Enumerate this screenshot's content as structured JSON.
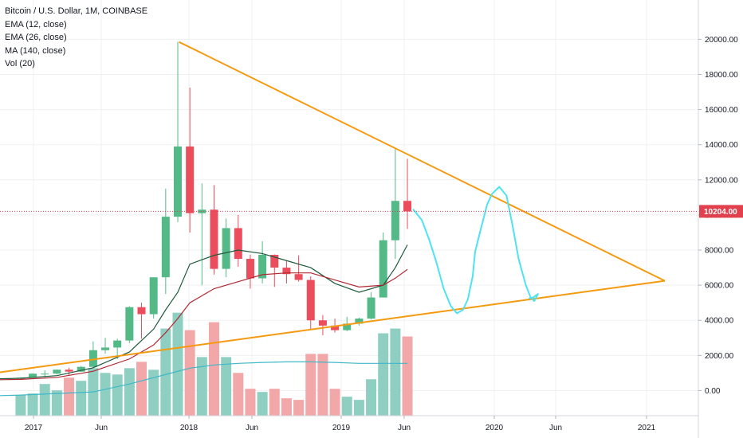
{
  "legend": {
    "title": "Bitcoin / U.S. Dollar, 1M, COINBASE",
    "indicators": [
      "EMA (12, close)",
      "EMA (26, close)",
      "MA (140, close)",
      "Vol (20)"
    ]
  },
  "colors": {
    "up": "#53b987",
    "down": "#eb4d5c",
    "vol_up": "#8fcfc2",
    "vol_down": "#f2a7a9",
    "ema12": "#1e5a3c",
    "ema26": "#b22833",
    "vol_ma": "#3fb8c8",
    "trendline": "#f59a0f",
    "drawing": "#4ee3f0",
    "last_price": "#e3404e",
    "grid": "#eef0f3",
    "axis_text": "#131722"
  },
  "chart_data": {
    "type": "candlestick",
    "y_axis": {
      "ticks": [
        "0.00",
        "2000.00",
        "4000.00",
        "6000.00",
        "8000.00",
        "10000.00",
        "12000.00",
        "14000.00",
        "16000.00",
        "18000.00",
        "20000.00"
      ],
      "range": [
        -750,
        21150
      ]
    },
    "x_axis": {
      "labels": [
        "2017",
        "Jun",
        "2018",
        "Jun",
        "2019",
        "Jun",
        "2020",
        "Jun",
        "2021"
      ]
    },
    "last_price": {
      "label": "10204.00",
      "value": 10204
    },
    "candles": [
      {
        "date": "2016-11",
        "open": 700,
        "high": 760,
        "low": 690,
        "close": 740
      },
      {
        "date": "2016-12",
        "open": 740,
        "high": 975,
        "low": 735,
        "close": 963
      },
      {
        "date": "2017-01",
        "open": 963,
        "high": 1150,
        "low": 750,
        "close": 965
      },
      {
        "date": "2017-02",
        "open": 965,
        "high": 1200,
        "low": 920,
        "close": 1190
      },
      {
        "date": "2017-03",
        "open": 1190,
        "high": 1300,
        "low": 890,
        "close": 1080
      },
      {
        "date": "2017-04",
        "open": 1080,
        "high": 1400,
        "low": 1070,
        "close": 1350
      },
      {
        "date": "2017-05",
        "open": 1350,
        "high": 2800,
        "low": 1340,
        "close": 2300
      },
      {
        "date": "2017-06",
        "open": 2300,
        "high": 3000,
        "low": 2100,
        "close": 2450
      },
      {
        "date": "2017-07",
        "open": 2450,
        "high": 2950,
        "low": 1800,
        "close": 2850
      },
      {
        "date": "2017-08",
        "open": 2850,
        "high": 4800,
        "low": 2700,
        "close": 4750
      },
      {
        "date": "2017-09",
        "open": 4750,
        "high": 5000,
        "low": 2950,
        "close": 4350
      },
      {
        "date": "2017-10",
        "open": 4350,
        "high": 6450,
        "low": 4100,
        "close": 6450
      },
      {
        "date": "2017-11",
        "open": 6450,
        "high": 11500,
        "low": 5500,
        "close": 9900
      },
      {
        "date": "2017-12",
        "open": 9900,
        "high": 19850,
        "low": 9600,
        "close": 13900
      },
      {
        "date": "2018-01",
        "open": 13900,
        "high": 17250,
        "low": 9000,
        "close": 10100
      },
      {
        "date": "2018-02",
        "open": 10100,
        "high": 11800,
        "low": 6000,
        "close": 10300
      },
      {
        "date": "2018-03",
        "open": 10300,
        "high": 11700,
        "low": 6600,
        "close": 6930
      },
      {
        "date": "2018-04",
        "open": 6930,
        "high": 9800,
        "low": 6450,
        "close": 9250
      },
      {
        "date": "2018-05",
        "open": 9250,
        "high": 10000,
        "low": 7050,
        "close": 7500
      },
      {
        "date": "2018-06",
        "open": 7500,
        "high": 7750,
        "low": 5800,
        "close": 6390
      },
      {
        "date": "2018-07",
        "open": 6390,
        "high": 8500,
        "low": 6100,
        "close": 7730
      },
      {
        "date": "2018-08",
        "open": 7730,
        "high": 7750,
        "low": 5900,
        "close": 7000
      },
      {
        "date": "2018-09",
        "open": 7000,
        "high": 7400,
        "low": 6100,
        "close": 6630
      },
      {
        "date": "2018-10",
        "open": 6630,
        "high": 7700,
        "low": 6200,
        "close": 6300
      },
      {
        "date": "2018-11",
        "open": 6300,
        "high": 6500,
        "low": 3500,
        "close": 4000
      },
      {
        "date": "2018-12",
        "open": 4000,
        "high": 4300,
        "low": 3150,
        "close": 3700
      },
      {
        "date": "2019-01",
        "open": 3700,
        "high": 4100,
        "low": 3300,
        "close": 3440
      },
      {
        "date": "2019-02",
        "open": 3440,
        "high": 4200,
        "low": 3380,
        "close": 3810
      },
      {
        "date": "2019-03",
        "open": 3810,
        "high": 4150,
        "low": 3700,
        "close": 4100
      },
      {
        "date": "2019-04",
        "open": 4100,
        "high": 5600,
        "low": 4050,
        "close": 5300
      },
      {
        "date": "2019-05",
        "open": 5300,
        "high": 9000,
        "low": 5300,
        "close": 8560
      },
      {
        "date": "2019-06",
        "open": 8560,
        "high": 13800,
        "low": 7500,
        "close": 10800
      },
      {
        "date": "2019-07",
        "open": 10800,
        "high": 13200,
        "low": 9200,
        "close": 10204
      }
    ],
    "volume": [
      {
        "date": "2016-11",
        "value": 650,
        "up": true
      },
      {
        "date": "2016-12",
        "value": 700,
        "up": true
      },
      {
        "date": "2017-01",
        "value": 1000,
        "up": true
      },
      {
        "date": "2017-02",
        "value": 800,
        "up": true
      },
      {
        "date": "2017-03",
        "value": 1200,
        "up": false
      },
      {
        "date": "2017-04",
        "value": 1100,
        "up": true
      },
      {
        "date": "2017-05",
        "value": 1500,
        "up": true
      },
      {
        "date": "2017-06",
        "value": 1350,
        "up": true
      },
      {
        "date": "2017-07",
        "value": 1300,
        "up": true
      },
      {
        "date": "2017-08",
        "value": 1500,
        "up": true
      },
      {
        "date": "2017-09",
        "value": 1700,
        "up": false
      },
      {
        "date": "2017-10",
        "value": 1450,
        "up": true
      },
      {
        "date": "2017-11",
        "value": 2750,
        "up": true
      },
      {
        "date": "2017-12",
        "value": 3250,
        "up": true
      },
      {
        "date": "2018-01",
        "value": 2700,
        "up": false
      },
      {
        "date": "2018-02",
        "value": 1850,
        "up": true
      },
      {
        "date": "2018-03",
        "value": 2950,
        "up": false
      },
      {
        "date": "2018-04",
        "value": 1850,
        "up": true
      },
      {
        "date": "2018-05",
        "value": 1350,
        "up": false
      },
      {
        "date": "2018-06",
        "value": 850,
        "up": false
      },
      {
        "date": "2018-07",
        "value": 750,
        "up": true
      },
      {
        "date": "2018-08",
        "value": 850,
        "up": false
      },
      {
        "date": "2018-09",
        "value": 550,
        "up": false
      },
      {
        "date": "2018-10",
        "value": 500,
        "up": false
      },
      {
        "date": "2018-11",
        "value": 1950,
        "up": false
      },
      {
        "date": "2018-12",
        "value": 1950,
        "up": false
      },
      {
        "date": "2019-01",
        "value": 850,
        "up": false
      },
      {
        "date": "2019-02",
        "value": 600,
        "up": true
      },
      {
        "date": "2019-03",
        "value": 500,
        "up": true
      },
      {
        "date": "2019-04",
        "value": 1150,
        "up": true
      },
      {
        "date": "2019-05",
        "value": 2600,
        "up": true
      },
      {
        "date": "2019-06",
        "value": 2750,
        "up": true
      },
      {
        "date": "2019-07",
        "value": 2500,
        "up": false
      }
    ],
    "ema12": [
      [
        -5,
        620
      ],
      [
        0,
        700
      ],
      [
        3,
        850
      ],
      [
        6,
        1300
      ],
      [
        9,
        2200
      ],
      [
        11,
        3500
      ],
      [
        12,
        4600
      ],
      [
        13,
        5600
      ],
      [
        14,
        7200
      ],
      [
        16,
        7700
      ],
      [
        18,
        8000
      ],
      [
        20,
        7800
      ],
      [
        22,
        7400
      ],
      [
        24,
        7000
      ],
      [
        26,
        6100
      ],
      [
        28,
        5600
      ],
      [
        30,
        6000
      ],
      [
        31,
        7000
      ],
      [
        32,
        8300
      ]
    ],
    "ema26": [
      [
        -5,
        580
      ],
      [
        0,
        640
      ],
      [
        3,
        750
      ],
      [
        6,
        1100
      ],
      [
        9,
        1800
      ],
      [
        11,
        2600
      ],
      [
        12,
        3300
      ],
      [
        13,
        4100
      ],
      [
        14,
        5000
      ],
      [
        16,
        5800
      ],
      [
        18,
        6200
      ],
      [
        20,
        6600
      ],
      [
        22,
        6700
      ],
      [
        24,
        6700
      ],
      [
        26,
        6300
      ],
      [
        28,
        5900
      ],
      [
        30,
        6000
      ],
      [
        31,
        6400
      ],
      [
        32,
        6900
      ]
    ],
    "vol_ma": [
      [
        -5,
        600
      ],
      [
        0,
        650
      ],
      [
        3,
        700
      ],
      [
        6,
        750
      ],
      [
        9,
        1000
      ],
      [
        12,
        1300
      ],
      [
        14,
        1500
      ],
      [
        16,
        1600
      ],
      [
        18,
        1650
      ],
      [
        20,
        1680
      ],
      [
        22,
        1700
      ],
      [
        24,
        1700
      ],
      [
        26,
        1680
      ],
      [
        28,
        1650
      ],
      [
        30,
        1650
      ],
      [
        32,
        1650
      ]
    ],
    "trendlines": [
      {
        "name": "upper-resistance",
        "from": [
          13.1,
          19850
        ],
        "to": [
          53.3,
          6250
        ]
      },
      {
        "name": "lower-support",
        "from": [
          -5.3,
          700
        ],
        "to": [
          53.3,
          6250
        ]
      }
    ],
    "projection": [
      [
        32.5,
        10300
      ],
      [
        33.2,
        9700
      ],
      [
        33.8,
        8600
      ],
      [
        34.4,
        7300
      ],
      [
        35.0,
        5800
      ],
      [
        35.6,
        4800
      ],
      [
        36.1,
        4400
      ],
      [
        36.6,
        4600
      ],
      [
        37.0,
        5200
      ],
      [
        37.4,
        6500
      ],
      [
        37.6,
        7900
      ],
      [
        38.0,
        9000
      ],
      [
        38.3,
        9800
      ],
      [
        38.6,
        10600
      ],
      [
        39.0,
        11200
      ],
      [
        39.6,
        11600
      ],
      [
        40.2,
        11100
      ],
      [
        40.7,
        9400
      ],
      [
        41.2,
        7500
      ],
      [
        41.8,
        6000
      ],
      [
        42.2,
        5300
      ],
      [
        42.5,
        5100
      ],
      [
        42.8,
        5500
      ],
      [
        42.4,
        5300
      ],
      [
        42.1,
        5250
      ]
    ]
  }
}
